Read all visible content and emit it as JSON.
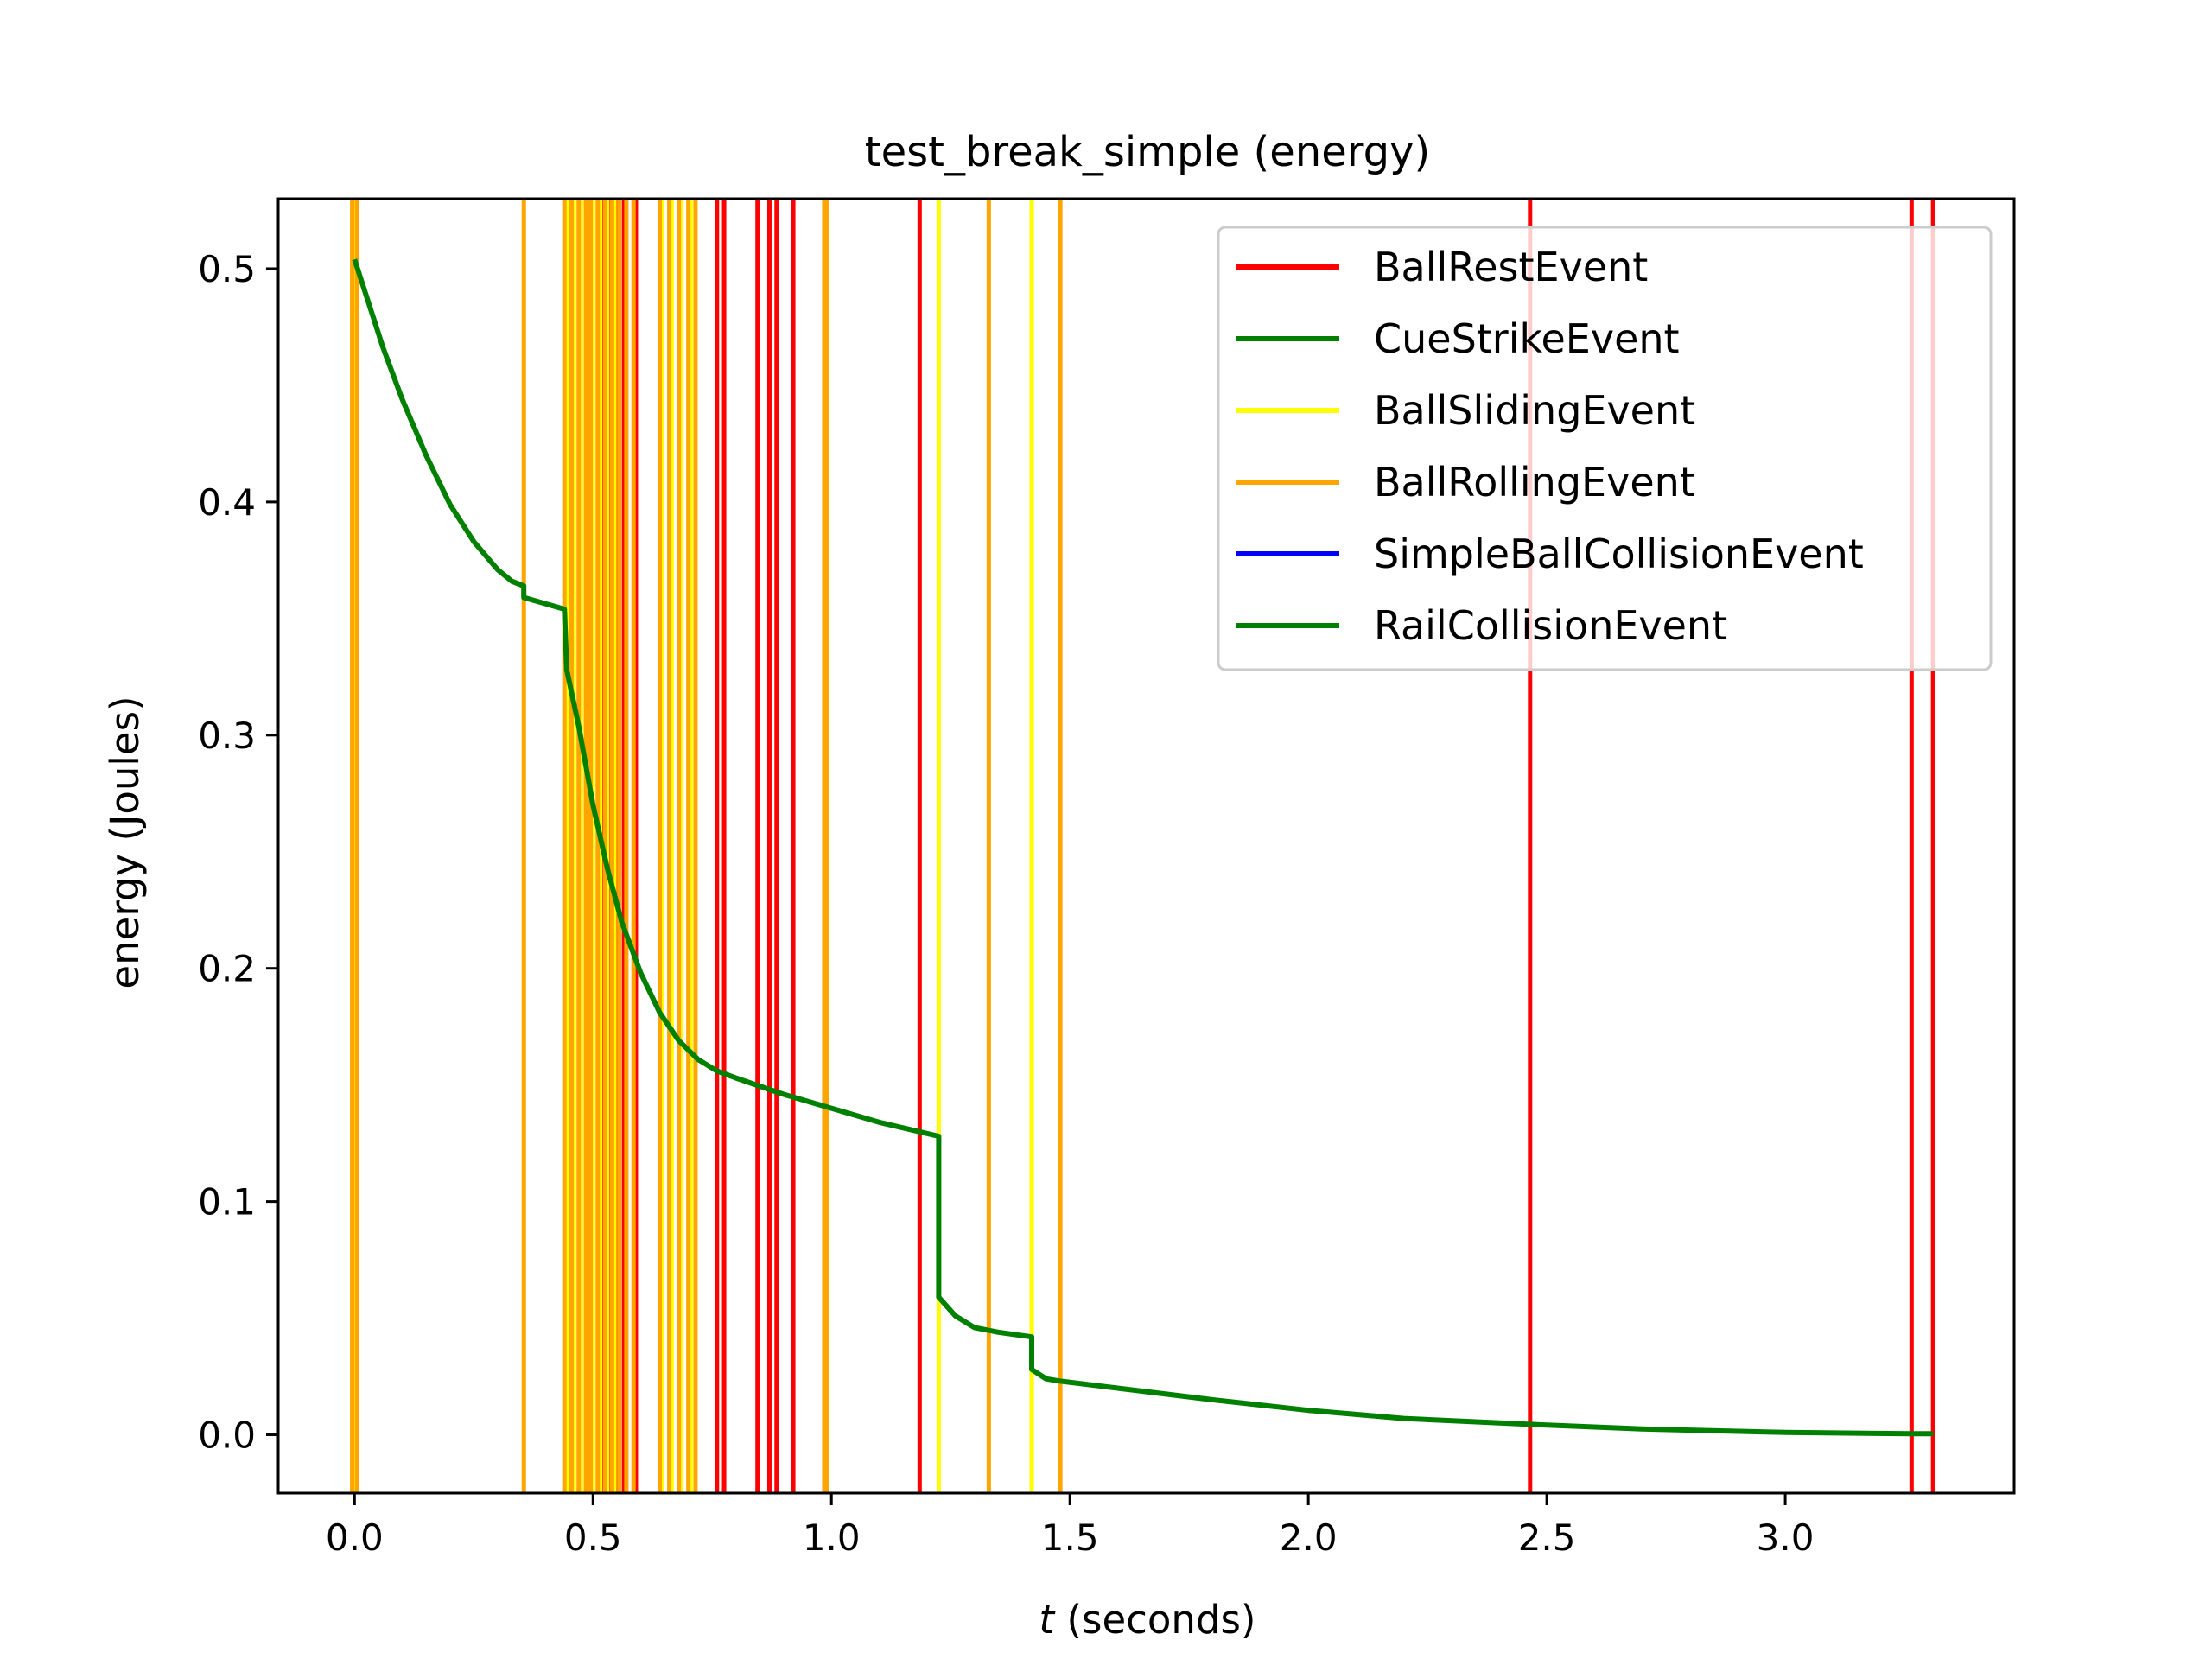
{
  "chart_data": {
    "type": "line",
    "title": "test_break_simple (energy)",
    "xlabel_var": "t",
    "xlabel_rest": " (seconds)",
    "ylabel": "energy (Joules)",
    "xlim": [
      -0.16,
      3.48
    ],
    "ylim": [
      -0.025,
      0.53
    ],
    "xticks": [
      0.0,
      0.5,
      1.0,
      1.5,
      2.0,
      2.5,
      3.0
    ],
    "xtick_labels": [
      "0.0",
      "0.5",
      "1.0",
      "1.5",
      "2.0",
      "2.5",
      "3.0"
    ],
    "yticks": [
      0.0,
      0.1,
      0.2,
      0.3,
      0.4,
      0.5
    ],
    "ytick_labels": [
      "0.0",
      "0.1",
      "0.2",
      "0.3",
      "0.4",
      "0.5"
    ],
    "grid": false,
    "legend_position": "upper-right",
    "event_series": [
      {
        "name": "BallRestEvent",
        "color": "#ff0000",
        "times": [
          0.52,
          0.535,
          0.55,
          0.565,
          0.59,
          0.76,
          0.775,
          0.845,
          0.87,
          0.885,
          0.92,
          1.185,
          2.465,
          3.265,
          3.31
        ]
      },
      {
        "name": "CueStrikeEvent",
        "color": "#008000",
        "times": []
      },
      {
        "name": "BallSlidingEvent",
        "color": "#ffff00",
        "times": [
          0.0,
          0.445,
          0.46,
          0.475,
          0.49,
          0.5,
          0.515,
          0.53,
          0.545,
          0.645,
          0.665,
          0.685,
          0.705,
          1.225,
          1.42
        ]
      },
      {
        "name": "BallRollingEvent",
        "color": "#ffa500",
        "times": [
          -0.005,
          0.005,
          0.355,
          0.44,
          0.455,
          0.47,
          0.485,
          0.495,
          0.51,
          0.525,
          0.54,
          0.555,
          0.57,
          0.585,
          0.64,
          0.66,
          0.68,
          0.7,
          0.715,
          0.985,
          0.99,
          1.33,
          1.48
        ]
      },
      {
        "name": "SimpleBallCollisionEvent",
        "color": "#0000ff",
        "times": []
      },
      {
        "name": "RailCollisionEvent",
        "color": "#008000",
        "times": []
      }
    ],
    "energy_series": {
      "name": "energy",
      "color": "#008000",
      "points": [
        [
          0.0,
          0.504
        ],
        [
          0.03,
          0.485
        ],
        [
          0.06,
          0.466
        ],
        [
          0.1,
          0.444
        ],
        [
          0.15,
          0.42
        ],
        [
          0.2,
          0.399
        ],
        [
          0.25,
          0.383
        ],
        [
          0.3,
          0.371
        ],
        [
          0.33,
          0.366
        ],
        [
          0.355,
          0.364
        ],
        [
          0.355,
          0.359
        ],
        [
          0.44,
          0.354
        ],
        [
          0.445,
          0.328
        ],
        [
          0.47,
          0.304
        ],
        [
          0.5,
          0.27
        ],
        [
          0.53,
          0.243
        ],
        [
          0.56,
          0.22
        ],
        [
          0.6,
          0.198
        ],
        [
          0.64,
          0.181
        ],
        [
          0.68,
          0.169
        ],
        [
          0.72,
          0.161
        ],
        [
          0.76,
          0.156
        ],
        [
          0.8,
          0.153
        ],
        [
          0.9,
          0.146
        ],
        [
          1.0,
          0.14
        ],
        [
          1.1,
          0.134
        ],
        [
          1.225,
          0.128
        ],
        [
          1.225,
          0.059
        ],
        [
          1.26,
          0.051
        ],
        [
          1.3,
          0.046
        ],
        [
          1.35,
          0.044
        ],
        [
          1.42,
          0.042
        ],
        [
          1.42,
          0.028
        ],
        [
          1.45,
          0.024
        ],
        [
          1.48,
          0.023
        ],
        [
          1.6,
          0.02
        ],
        [
          1.8,
          0.015
        ],
        [
          2.0,
          0.0105
        ],
        [
          2.2,
          0.007
        ],
        [
          2.465,
          0.0045
        ],
        [
          2.7,
          0.0025
        ],
        [
          3.0,
          0.001
        ],
        [
          3.265,
          0.0005
        ],
        [
          3.31,
          0.0005
        ]
      ]
    }
  }
}
